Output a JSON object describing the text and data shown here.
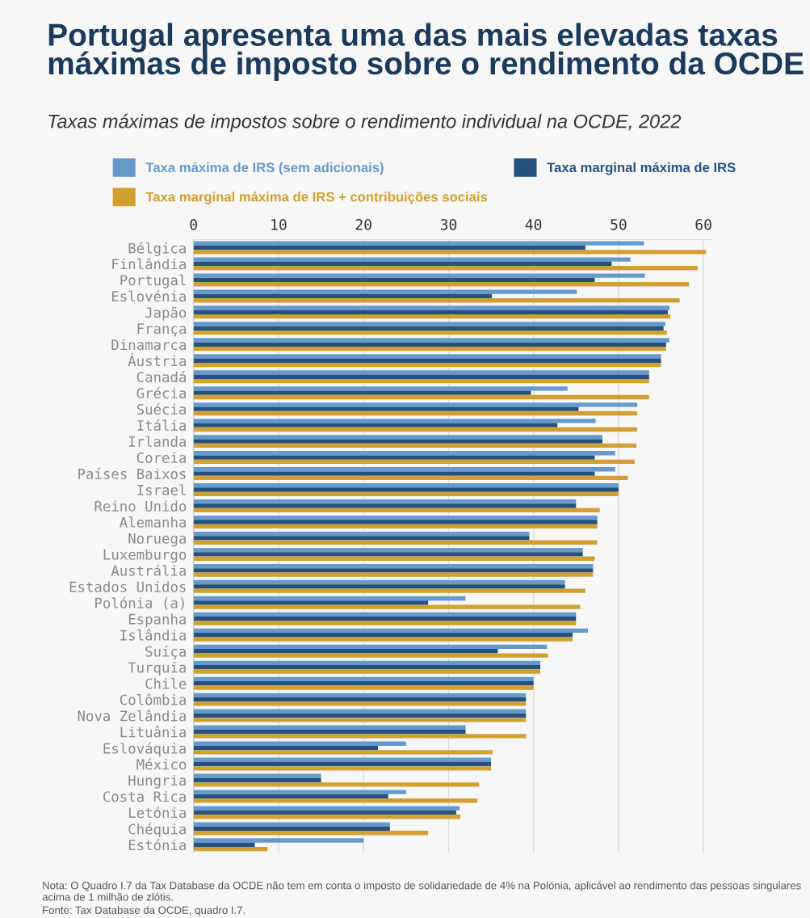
{
  "chart_data": {
    "type": "bar",
    "orientation": "horizontal",
    "title": "Portugal apresenta uma das mais elevadas taxas\nmáximas de imposto sobre o rendimento da OCDE",
    "subtitle": "Taxas máximas de impostos sobre o rendimento individual na OCDE, 2022",
    "categories": [
      "Bélgica",
      "Finlândia",
      "Portugal",
      "Eslovénia",
      "Japão",
      "França",
      "Dinamarca",
      "Áustria",
      "Canadá",
      "Grécia",
      "Suécia",
      "Itália",
      "Irlanda",
      "Coreia",
      "Países Baixos",
      "Israel",
      "Reino Unido",
      "Alemanha",
      "Noruega",
      "Luxemburgo",
      "Austrália",
      "Estados Unidos",
      "Polónia (a)",
      "Espanha",
      "Islândia",
      "Suíça",
      "Turquia",
      "Chile",
      "Colômbia",
      "Nova Zelândia",
      "Lituânia",
      "Eslováquia",
      "México",
      "Hungria",
      "Costa Rica",
      "Letónia",
      "Chéquia",
      "Estónia"
    ],
    "series": [
      {
        "name": "Taxa máxima de IRS (sem adicionais)",
        "color": "#6699cc",
        "values": [
          53.0,
          51.4,
          53.1,
          45.1,
          56.0,
          55.5,
          56.0,
          55.0,
          53.6,
          44.0,
          52.2,
          47.3,
          48.1,
          49.6,
          49.6,
          50.0,
          45.0,
          47.5,
          39.5,
          45.8,
          47.0,
          43.7,
          32.0,
          45.0,
          46.4,
          41.6,
          40.8,
          40.0,
          39.1,
          39.1,
          32.0,
          25.0,
          35.0,
          15.0,
          25.0,
          31.3,
          23.1,
          20.0
        ]
      },
      {
        "name": "Taxa marginal máxima de IRS",
        "color": "#24517f",
        "values": [
          46.1,
          49.2,
          47.2,
          35.1,
          55.8,
          55.3,
          55.6,
          55.0,
          53.6,
          39.7,
          45.3,
          42.8,
          48.1,
          47.2,
          47.2,
          50.0,
          45.0,
          47.5,
          39.5,
          45.8,
          47.0,
          43.7,
          27.6,
          45.0,
          44.6,
          35.8,
          40.8,
          40.0,
          39.1,
          39.1,
          32.0,
          21.7,
          35.0,
          15.0,
          22.9,
          30.9,
          23.1,
          7.2
        ]
      },
      {
        "name": "Taxa marginal máxima de IRS + contribuições sociais",
        "color": "#d1a030",
        "values": [
          60.3,
          59.3,
          58.3,
          57.2,
          56.1,
          55.7,
          55.6,
          55.0,
          53.6,
          53.6,
          52.2,
          52.2,
          52.1,
          51.9,
          51.1,
          50.0,
          47.8,
          47.5,
          47.5,
          47.2,
          47.0,
          46.1,
          45.5,
          45.0,
          44.6,
          41.7,
          40.8,
          40.0,
          39.1,
          39.1,
          39.1,
          35.2,
          35.0,
          33.6,
          33.4,
          31.4,
          27.6,
          8.7
        ]
      }
    ],
    "xlim": [
      0,
      61
    ],
    "xticks": [
      0,
      10,
      20,
      30,
      40,
      50,
      60
    ],
    "grid": "x",
    "legend": "top",
    "annotations": [
      "Nota: O Quadro I.7 da Tax Database da OCDE não tem em conta o imposto de solidariedade de 4% na Polónia, aplicável ao rendimento das pessoas singulares acima de 1 milhão de zlótis.",
      "Fonte: Tax Database da OCDE, quadro I.7."
    ]
  }
}
